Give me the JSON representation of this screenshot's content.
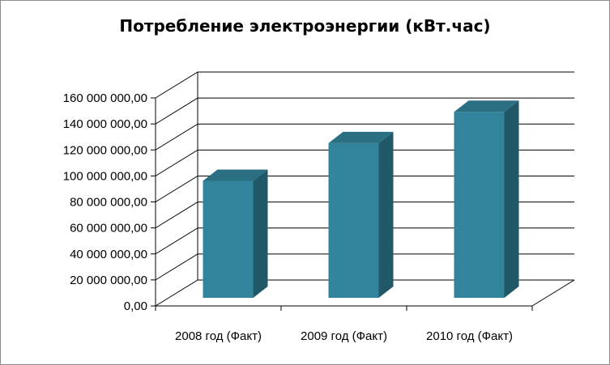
{
  "chart_data": {
    "type": "bar",
    "title": "Потребление электроэнергии (кВт.час)",
    "categories": [
      "2008 год (Факт)",
      "2009 год  (Факт)",
      "2010 год  (Факт)"
    ],
    "values": [
      90000000,
      119000000,
      143000000
    ],
    "ylim": [
      0,
      160000000
    ],
    "yticks": [
      0,
      20000000,
      40000000,
      60000000,
      80000000,
      100000000,
      120000000,
      140000000,
      160000000
    ],
    "ytick_labels": [
      "0,00",
      "20 000 000,00",
      "40 000 000,00",
      "60 000 000,00",
      "80 000 000,00",
      "100 000 000,00",
      "120 000 000,00",
      "140 000 000,00",
      "160 000 000,00"
    ],
    "grid": true,
    "legend": "none",
    "style_3d": true
  },
  "colors": {
    "bar_front": "#31849b",
    "bar_side": "#215867",
    "bar_top": "#2a6f82",
    "grid": "#000000"
  }
}
